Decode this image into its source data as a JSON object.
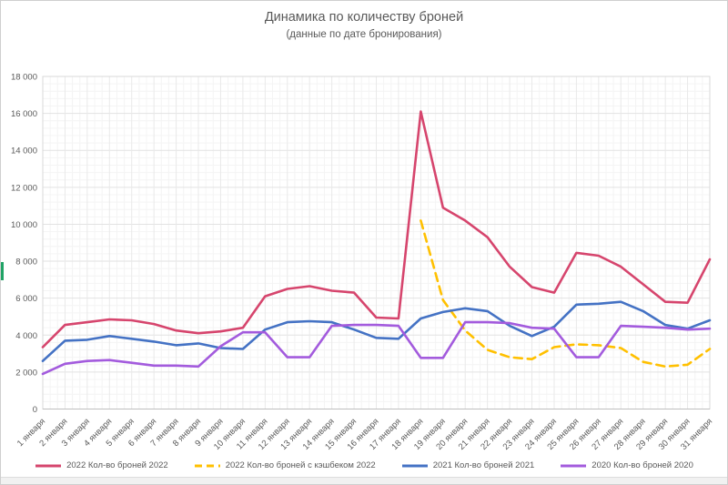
{
  "title": "Динамика по количеству броней",
  "subtitle": "(данные по дате бронирования)",
  "chart_data": {
    "type": "line",
    "title": "Динамика по количеству броней",
    "subtitle": "(данные по дате бронирования)",
    "xlabel": "",
    "ylabel": "",
    "ylim": [
      0,
      18000
    ],
    "ytick_step": 2000,
    "ytick_labels": [
      "0",
      "2 000",
      "4 000",
      "6 000",
      "8 000",
      "10 000",
      "12 000",
      "14 000",
      "16 000",
      "18 000"
    ],
    "grid": true,
    "legend_position": "bottom",
    "categories": [
      "1 января",
      "2 января",
      "3 января",
      "4 января",
      "5 января",
      "6 января",
      "7 января",
      "8 января",
      "9 января",
      "10 января",
      "11 января",
      "12 января",
      "13 января",
      "14 января",
      "15 января",
      "16 января",
      "17 января",
      "18 января",
      "19 января",
      "20 января",
      "21 января",
      "22 января",
      "23 января",
      "24 января",
      "25 января",
      "26 января",
      "27 января",
      "28 января",
      "29 января",
      "30 января",
      "31 января"
    ],
    "series": [
      {
        "name": "2022 Кол-во броней 2022",
        "color": "#d6456d",
        "style": "solid",
        "values": [
          3350,
          4550,
          4700,
          4850,
          4800,
          4600,
          4250,
          4100,
          4200,
          4400,
          6100,
          6500,
          6650,
          6400,
          6300,
          4950,
          4900,
          16100,
          10900,
          10200,
          9300,
          7700,
          6600,
          6300,
          8450,
          8300,
          7700,
          6750,
          5800,
          5750,
          8100
        ]
      },
      {
        "name": "2022 Кол-во броней с кэшбеком 2022",
        "color": "#ffc000",
        "style": "dashed",
        "values": [
          null,
          null,
          null,
          null,
          null,
          null,
          null,
          null,
          null,
          null,
          null,
          null,
          null,
          null,
          null,
          null,
          null,
          10200,
          5900,
          4250,
          3200,
          2800,
          2700,
          3350,
          3500,
          3450,
          3300,
          2550,
          2300,
          2400,
          3250
        ]
      },
      {
        "name": "2021 Кол-во броней 2021",
        "color": "#4472c4",
        "style": "solid",
        "values": [
          2600,
          3700,
          3750,
          3950,
          3800,
          3650,
          3450,
          3550,
          3300,
          3250,
          4300,
          4700,
          4750,
          4700,
          4300,
          3850,
          3800,
          4900,
          5250,
          5450,
          5300,
          4500,
          3950,
          4450,
          5650,
          5700,
          5800,
          5300,
          4550,
          4350,
          4800
        ]
      },
      {
        "name": "2020 Кол-во броней 2020",
        "color": "#a35bdd",
        "style": "solid",
        "values": [
          1900,
          2450,
          2600,
          2650,
          2500,
          2350,
          2350,
          2300,
          3400,
          4150,
          4150,
          2800,
          2800,
          4500,
          4550,
          4550,
          4500,
          2770,
          2770,
          4700,
          4700,
          4650,
          4400,
          4350,
          2800,
          2800,
          4500,
          4450,
          4400,
          4300,
          4350
        ]
      }
    ]
  }
}
